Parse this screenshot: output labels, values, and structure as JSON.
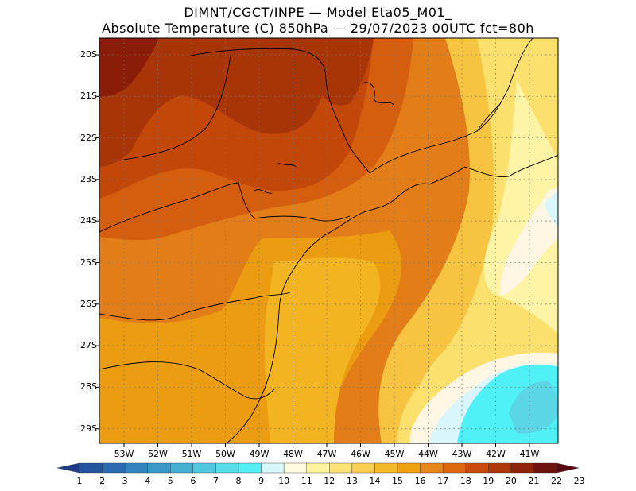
{
  "title": {
    "line1": "DIMNT/CGCT/INPE —  Model Eta05_M01_",
    "line2": "Absolute Temperature (C) 850hPa —  29/07/2023 00UTC fct=80h"
  },
  "map": {
    "latitudes": [
      "20S",
      "21S",
      "22S",
      "23S",
      "24S",
      "25S",
      "26S",
      "27S",
      "28S",
      "29S"
    ],
    "longitudes": [
      "53W",
      "52W",
      "51W",
      "50W",
      "49W",
      "48W",
      "47W",
      "46W",
      "45W",
      "44W",
      "43W",
      "42W",
      "41W"
    ],
    "grid": "dotted",
    "colors": {
      "t23": "#6b0f0f",
      "t21": "#8b1d08",
      "t20": "#a83508",
      "t19": "#c4470a",
      "t18": "#d45e0e",
      "t17": "#e27d18",
      "t16": "#eb9c10",
      "t15": "#f2b420",
      "t14": "#f6c440",
      "t13": "#fbe06e",
      "t12": "#fff3a6",
      "t11": "#fff7e3",
      "t10": "#d9f6fc",
      "t9": "#4ff1f7",
      "t8": "#5ad6e6"
    }
  },
  "colorbar": {
    "labels": [
      "1",
      "2",
      "3",
      "4",
      "5",
      "6",
      "7",
      "8",
      "9",
      "10",
      "11",
      "12",
      "13",
      "14",
      "15",
      "16",
      "17",
      "18",
      "19",
      "20",
      "21",
      "22",
      "23"
    ],
    "colors": [
      "#1c3a8a",
      "#2554a0",
      "#2b6cb0",
      "#3184bc",
      "#3a97c6",
      "#46b0d2",
      "#52c8de",
      "#58dee8",
      "#50f0f5",
      "#d6f6fb",
      "#fffbe0",
      "#fff2a0",
      "#fde278",
      "#f9cf52",
      "#f4b928",
      "#eea20f",
      "#e7861a",
      "#dd6810",
      "#c94a0a",
      "#ad360a",
      "#8f230b",
      "#6d120f",
      "#570a12"
    ]
  }
}
